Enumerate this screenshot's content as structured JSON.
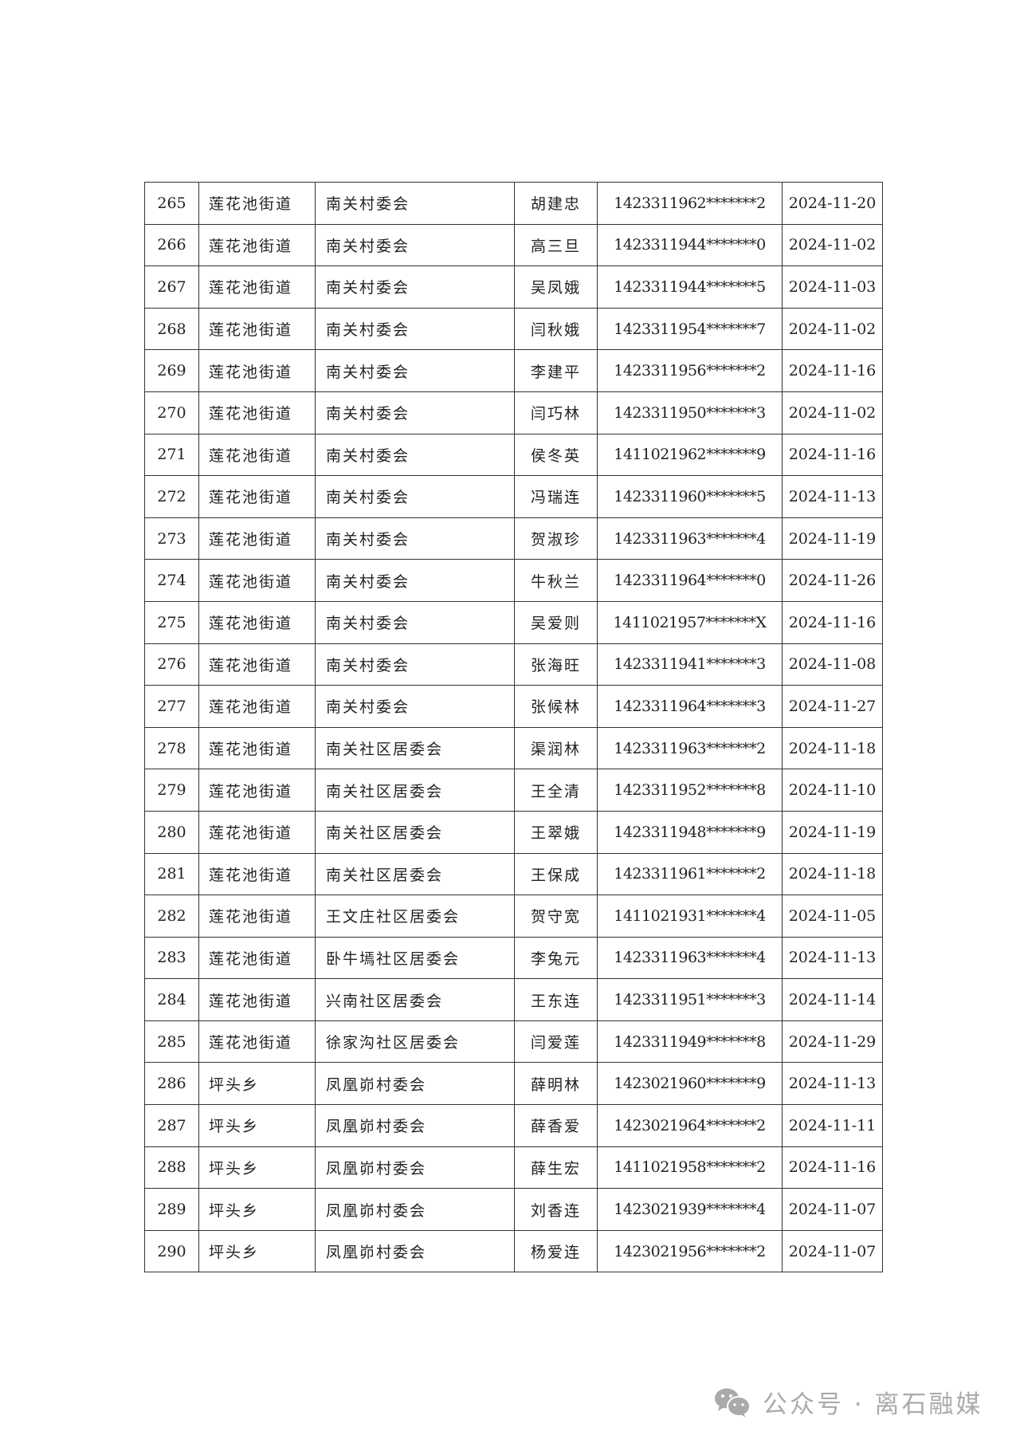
{
  "table": {
    "rows": [
      [
        "265",
        "莲花池街道",
        "南关村委会",
        "胡建忠",
        "1423311962*******2",
        "2024-11-20"
      ],
      [
        "266",
        "莲花池街道",
        "南关村委会",
        "高三旦",
        "1423311944*******0",
        "2024-11-02"
      ],
      [
        "267",
        "莲花池街道",
        "南关村委会",
        "吴凤娥",
        "1423311944*******5",
        "2024-11-03"
      ],
      [
        "268",
        "莲花池街道",
        "南关村委会",
        "闫秋娥",
        "1423311954*******7",
        "2024-11-02"
      ],
      [
        "269",
        "莲花池街道",
        "南关村委会",
        "李建平",
        "1423311956*******2",
        "2024-11-16"
      ],
      [
        "270",
        "莲花池街道",
        "南关村委会",
        "闫巧林",
        "1423311950*******3",
        "2024-11-02"
      ],
      [
        "271",
        "莲花池街道",
        "南关村委会",
        "侯冬英",
        "1411021962*******9",
        "2024-11-16"
      ],
      [
        "272",
        "莲花池街道",
        "南关村委会",
        "冯瑞连",
        "1423311960*******5",
        "2024-11-13"
      ],
      [
        "273",
        "莲花池街道",
        "南关村委会",
        "贺淑珍",
        "1423311963*******4",
        "2024-11-19"
      ],
      [
        "274",
        "莲花池街道",
        "南关村委会",
        "牛秋兰",
        "1423311964*******0",
        "2024-11-26"
      ],
      [
        "275",
        "莲花池街道",
        "南关村委会",
        "吴爱则",
        "1411021957*******X",
        "2024-11-16"
      ],
      [
        "276",
        "莲花池街道",
        "南关村委会",
        "张海旺",
        "1423311941*******3",
        "2024-11-08"
      ],
      [
        "277",
        "莲花池街道",
        "南关村委会",
        "张候林",
        "1423311964*******3",
        "2024-11-27"
      ],
      [
        "278",
        "莲花池街道",
        "南关社区居委会",
        "渠润林",
        "1423311963*******2",
        "2024-11-18"
      ],
      [
        "279",
        "莲花池街道",
        "南关社区居委会",
        "王全清",
        "1423311952*******8",
        "2024-11-10"
      ],
      [
        "280",
        "莲花池街道",
        "南关社区居委会",
        "王翠娥",
        "1423311948*******9",
        "2024-11-19"
      ],
      [
        "281",
        "莲花池街道",
        "南关社区居委会",
        "王保成",
        "1423311961*******2",
        "2024-11-18"
      ],
      [
        "282",
        "莲花池街道",
        "王文庄社区居委会",
        "贺守宽",
        "1411021931*******4",
        "2024-11-05"
      ],
      [
        "283",
        "莲花池街道",
        "卧牛墕社区居委会",
        "李兔元",
        "1423311963*******4",
        "2024-11-13"
      ],
      [
        "284",
        "莲花池街道",
        "兴南社区居委会",
        "王东连",
        "1423311951*******3",
        "2024-11-14"
      ],
      [
        "285",
        "莲花池街道",
        "徐家沟社区居委会",
        "闫爱莲",
        "1423311949*******8",
        "2024-11-29"
      ],
      [
        "286",
        "坪头乡",
        "凤凰峁村委会",
        "薛明林",
        "1423021960*******9",
        "2024-11-13"
      ],
      [
        "287",
        "坪头乡",
        "凤凰峁村委会",
        "薛香爱",
        "1423021964*******2",
        "2024-11-11"
      ],
      [
        "288",
        "坪头乡",
        "凤凰峁村委会",
        "薛生宏",
        "1411021958*******2",
        "2024-11-16"
      ],
      [
        "289",
        "坪头乡",
        "凤凰峁村委会",
        "刘香连",
        "1423021939*******4",
        "2024-11-07"
      ],
      [
        "290",
        "坪头乡",
        "凤凰峁村委会",
        "杨爱连",
        "1423021956*******2",
        "2024-11-07"
      ]
    ]
  },
  "watermark": {
    "icon": "wechat-icon",
    "text": "公众号 · 离石融媒",
    "color": "#aaaaaa"
  }
}
